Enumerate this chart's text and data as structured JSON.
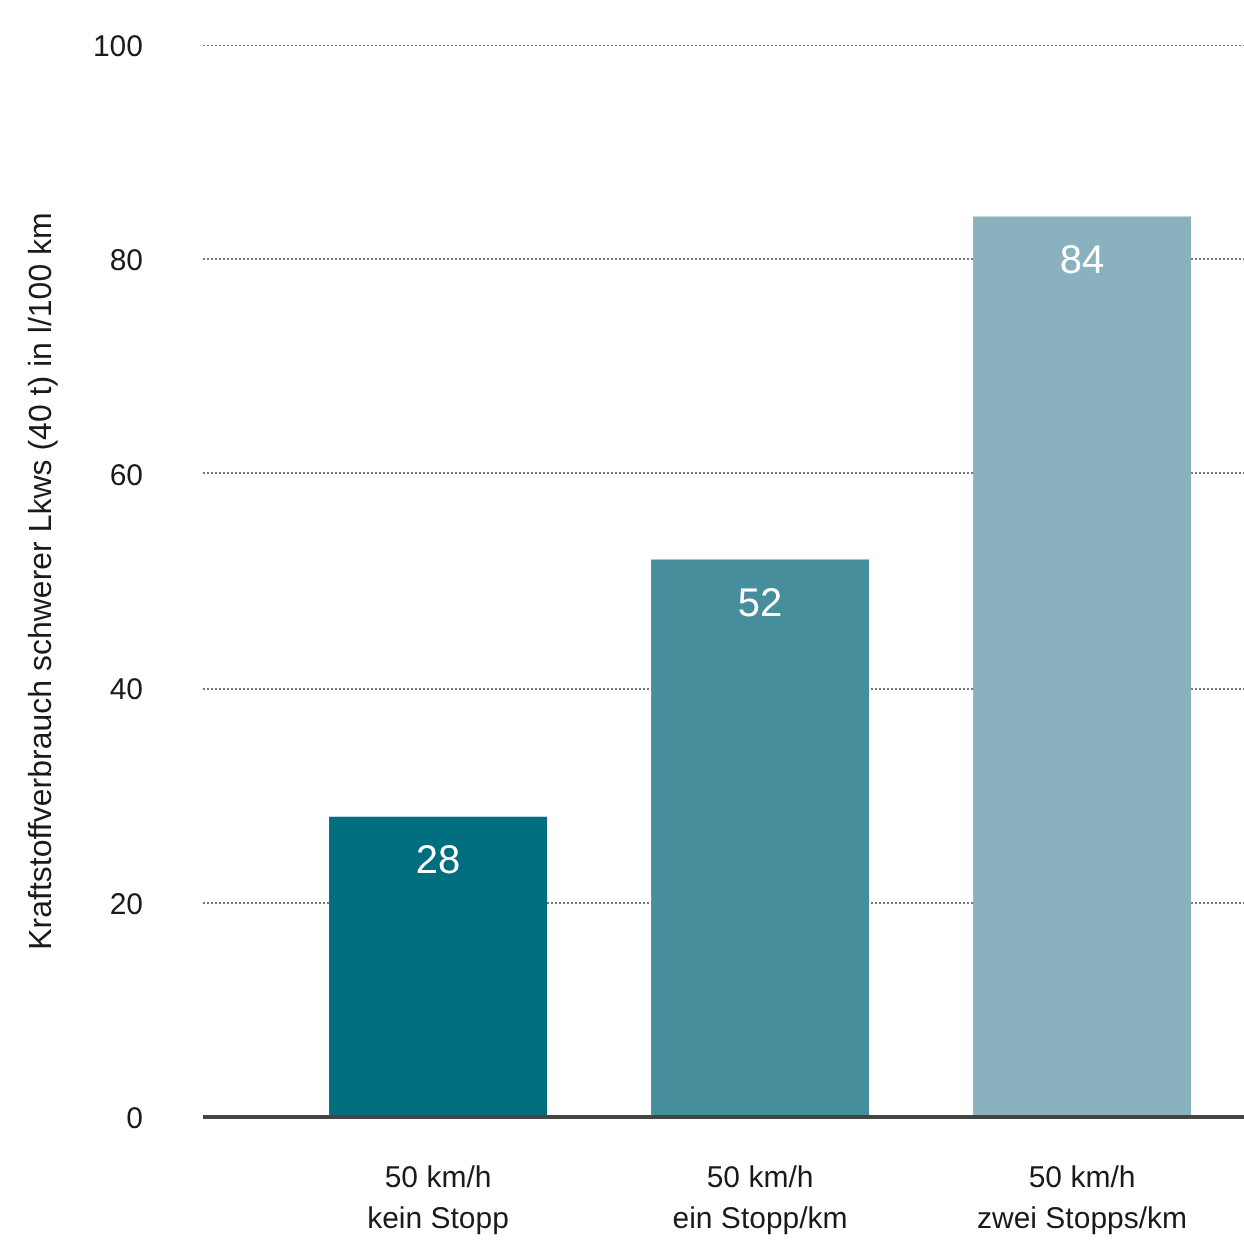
{
  "chart_data": {
    "type": "bar",
    "ylabel": "Kraftstoffverbrauch schwerer Lkws (40 t) in l/100 km",
    "categories": [
      "50 km/h\nkein Stopp",
      "50 km/h\nein Stopp/km",
      "50 km/h\nzwei Stopps/km"
    ],
    "values": [
      28,
      52,
      84
    ],
    "colors": [
      "#006e7f",
      "#478e9d",
      "#89b1be"
    ],
    "ylim": [
      0,
      100
    ],
    "yticks": [
      0,
      20,
      40,
      60,
      80,
      100
    ],
    "grid": "y",
    "data_labels": true
  }
}
